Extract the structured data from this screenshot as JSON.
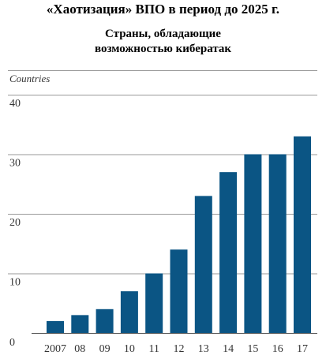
{
  "title": "«Хаотизация» ВПО в период до 2025 г.",
  "subtitle_lines": [
    "Страны, обладающие",
    "возможностью кибератак"
  ],
  "colors": {
    "bar": "#0b5584",
    "grid": "#9a9a9a",
    "text": "#333333"
  },
  "chart_data": {
    "type": "bar",
    "ylabel": "Countries",
    "categories": [
      "2007",
      "08",
      "09",
      "10",
      "11",
      "12",
      "13",
      "14",
      "15",
      "16",
      "17"
    ],
    "values": [
      2,
      3,
      4,
      7,
      10,
      14,
      23,
      27,
      30,
      30,
      33
    ],
    "ylim": [
      0,
      40
    ],
    "yticks": [
      0,
      10,
      20,
      30,
      40
    ],
    "grid": true
  }
}
